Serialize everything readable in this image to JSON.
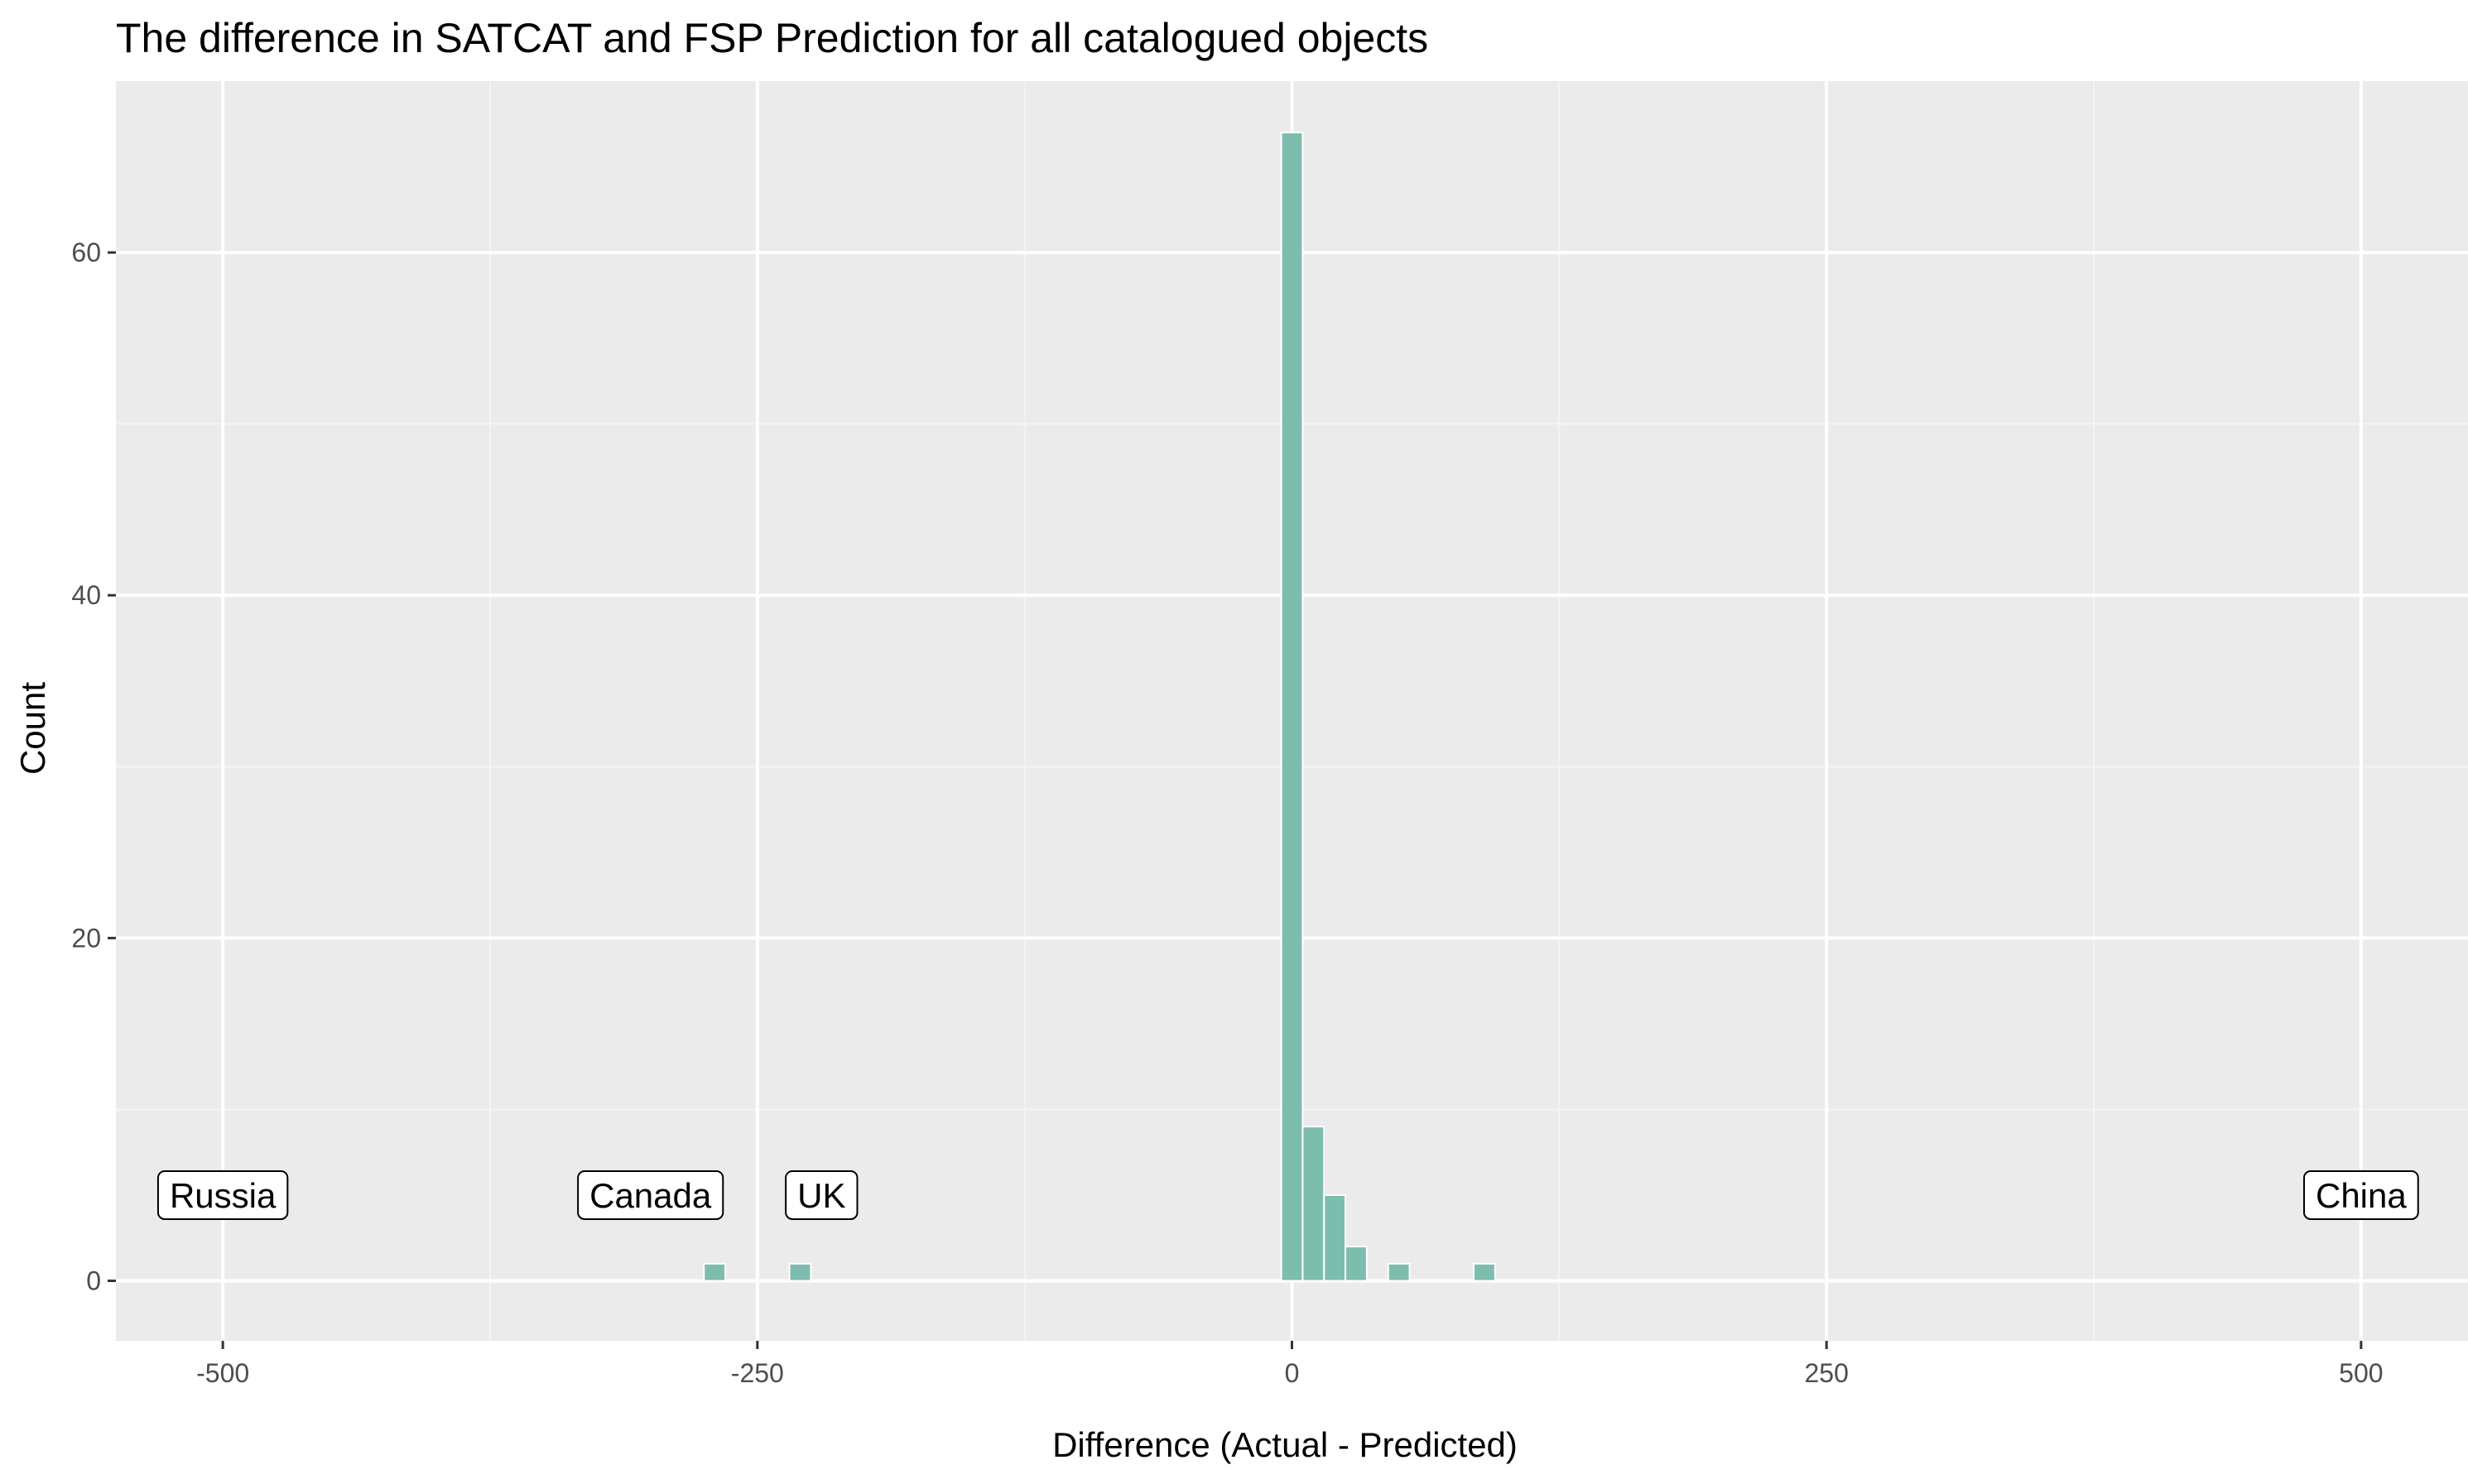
{
  "chart_data": {
    "type": "bar",
    "title": "The difference in SATCAT and FSP Prediction for all catalogued objects",
    "xlabel": "Difference (Actual - Predicted)",
    "ylabel": "Count",
    "xlim": [
      -550,
      550
    ],
    "ylim": [
      -3.5,
      70
    ],
    "x_ticks": [
      {
        "value": -500,
        "label": "-500"
      },
      {
        "value": -250,
        "label": "-250"
      },
      {
        "value": 0,
        "label": "0"
      },
      {
        "value": 250,
        "label": "250"
      },
      {
        "value": 500,
        "label": "500"
      }
    ],
    "y_ticks": [
      {
        "value": 0,
        "label": "0"
      },
      {
        "value": 20,
        "label": "20"
      },
      {
        "value": 40,
        "label": "40"
      },
      {
        "value": 60,
        "label": "60"
      }
    ],
    "grid": true,
    "bin_width": 10,
    "bars": [
      {
        "x": -270,
        "count": 1
      },
      {
        "x": -230,
        "count": 1
      },
      {
        "x": 0,
        "count": 67
      },
      {
        "x": 10,
        "count": 9
      },
      {
        "x": 20,
        "count": 5
      },
      {
        "x": 30,
        "count": 2
      },
      {
        "x": 50,
        "count": 1
      },
      {
        "x": 90,
        "count": 1
      }
    ],
    "annotations": [
      {
        "text": "Russia",
        "x": -500,
        "y": 5
      },
      {
        "text": "Canada",
        "x": -300,
        "y": 5
      },
      {
        "text": "UK",
        "x": -220,
        "y": 5
      },
      {
        "text": "China",
        "x": 500,
        "y": 5
      }
    ],
    "zero_segments": [
      {
        "x": -500
      },
      {
        "x": 500
      }
    ],
    "colors": {
      "bar": "#7dbdad",
      "panel": "#ebebeb",
      "grid_major": "#ffffff",
      "grid_minor": "#f4f4f4",
      "tick_label": "#4d4d4d"
    }
  }
}
